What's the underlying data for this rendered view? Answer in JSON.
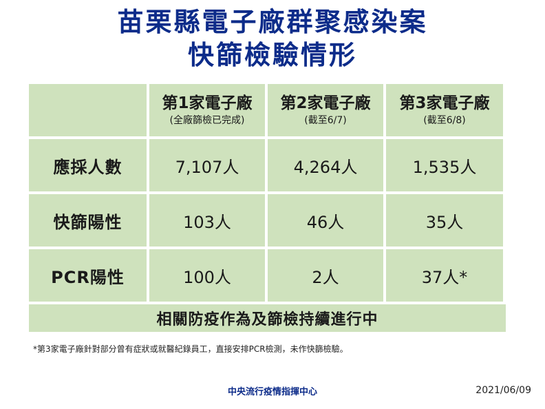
{
  "title": {
    "line1": "苗栗縣電子廠群聚感染案",
    "line2": "快篩檢驗情形"
  },
  "table": {
    "columns": [
      {
        "name": "第1家電子廠",
        "note": "(全廠篩檢已完成)"
      },
      {
        "name": "第2家電子廠",
        "note": "(截至6/7)"
      },
      {
        "name": "第3家電子廠",
        "note": "(截至6/8)"
      }
    ],
    "rows": [
      {
        "label": "應採人數",
        "values": [
          "7,107人",
          "4,264人",
          "1,535人"
        ]
      },
      {
        "label": "快篩陽性",
        "values": [
          "103人",
          "46人",
          "35人"
        ]
      },
      {
        "label": "PCR陽性",
        "values": [
          "100人",
          "2人",
          "37人*"
        ]
      }
    ],
    "footer": "相關防疫作為及篩檢持續進行中"
  },
  "footnote": "*第3家電子廠針對部分曾有症狀或就醫紀錄員工，直接安排PCR檢測，未作快篩檢驗。",
  "source": "中央流行疫情指揮中心",
  "date": "2021/06/09",
  "colors": {
    "title": "#0d2c8a",
    "cell_bg": "#cfe2bd"
  }
}
